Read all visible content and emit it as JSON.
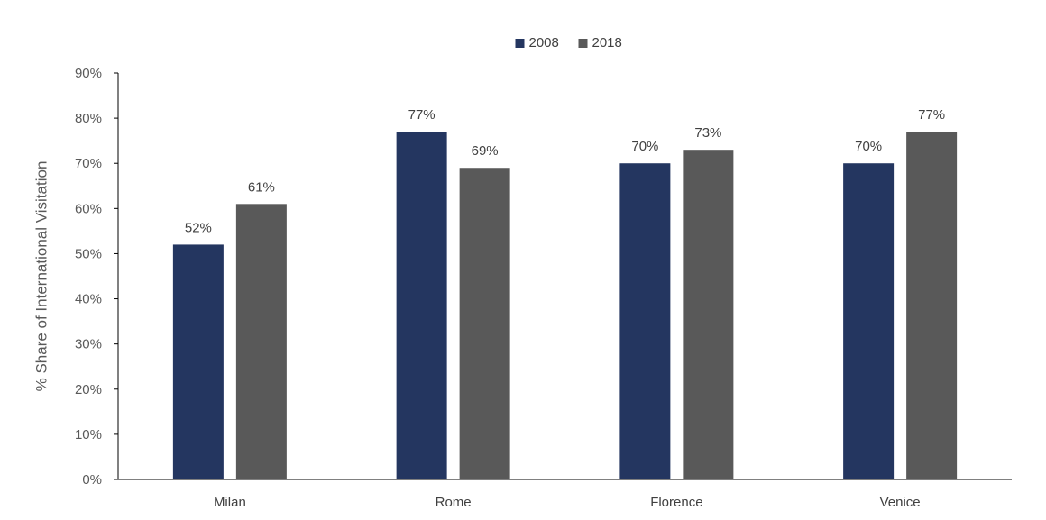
{
  "chart_data": {
    "type": "bar",
    "title": "",
    "xlabel": "",
    "ylabel": "% Share of International Visitation",
    "categories": [
      "Milan",
      "Rome",
      "Florence",
      "Venice"
    ],
    "series": [
      {
        "name": "2008",
        "color": "#243660",
        "values": [
          52,
          77,
          70,
          70
        ]
      },
      {
        "name": "2018",
        "color": "#595959",
        "values": [
          61,
          69,
          73,
          77
        ]
      }
    ],
    "ylim": [
      0,
      90
    ],
    "ytick_step": 10,
    "value_suffix": "%",
    "grid": false,
    "legend_position": "top-center"
  }
}
